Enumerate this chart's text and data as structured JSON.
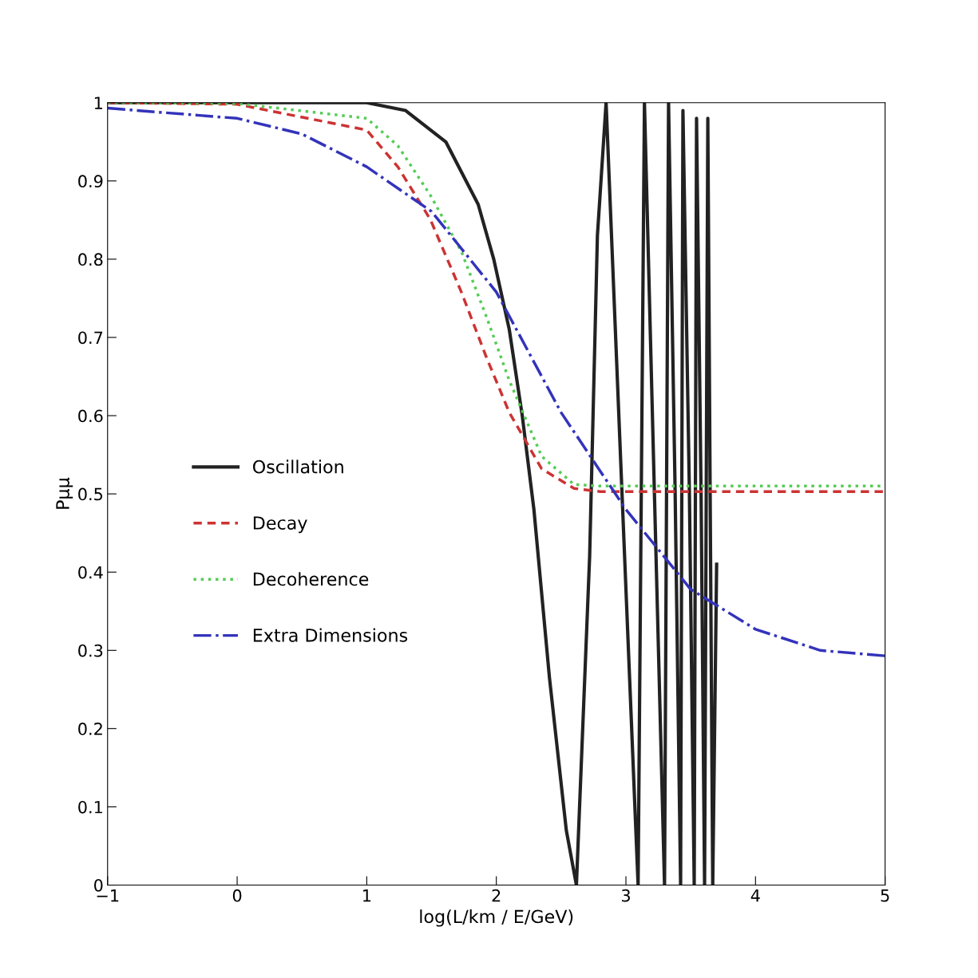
{
  "chart_data": {
    "type": "line",
    "xlabel": "log(L/km / E/GeV)",
    "ylabel": "Pμμ",
    "xlim": [
      -1,
      5
    ],
    "ylim": [
      0,
      1
    ],
    "xticks": [
      {
        "value": -1,
        "label": "−1"
      },
      0,
      1,
      2,
      3,
      4,
      5
    ],
    "yticks": [
      0,
      0.1,
      0.2,
      0.3,
      0.4,
      0.5,
      0.6,
      0.7,
      0.8,
      0.9,
      1
    ],
    "grid": false,
    "legend": "left",
    "marker": "none",
    "series": [
      {
        "name": "Oscillation",
        "color": "#222222",
        "line_style": "solid",
        "x": [
          -1,
          0,
          1,
          1.3,
          1.61,
          1.86,
          1.98,
          2.1,
          2.2,
          2.29,
          2.41,
          2.54,
          2.618,
          2.72,
          2.78,
          2.847,
          2.97,
          3.094,
          3.143,
          3.22,
          3.298,
          3.329,
          3.38,
          3.422,
          3.44,
          3.49,
          3.527,
          3.545,
          3.58,
          3.607,
          3.632,
          3.65,
          3.67,
          3.7
        ],
        "values": [
          1,
          1,
          1,
          0.99,
          0.95,
          0.87,
          0.8,
          0.71,
          0.6,
          0.48,
          0.265,
          0.07,
          0,
          0.42,
          0.83,
          1,
          0.5,
          0,
          1,
          0.5,
          0,
          1,
          0.5,
          0,
          0.99,
          0.5,
          0,
          0.98,
          0.5,
          0,
          0.98,
          0.5,
          0,
          0.41
        ]
      },
      {
        "name": "Decay",
        "color": "#cc3333",
        "line_style": "dashed",
        "x": [
          -1,
          0,
          1,
          1.24,
          1.49,
          1.73,
          1.92,
          2.1,
          2.35,
          2.6,
          2.8,
          5
        ],
        "values": [
          1,
          0.998,
          0.965,
          0.918,
          0.851,
          0.758,
          0.676,
          0.604,
          0.532,
          0.507,
          0.503,
          0.503
        ]
      },
      {
        "name": "Decoherence",
        "color": "#55cc55",
        "line_style": "dotted",
        "x": [
          -1,
          0,
          1,
          1.24,
          1.49,
          1.73,
          1.92,
          2.1,
          2.35,
          2.6,
          2.8,
          5
        ],
        "values": [
          1,
          0.999,
          0.98,
          0.945,
          0.882,
          0.81,
          0.728,
          0.645,
          0.548,
          0.512,
          0.51,
          0.51
        ]
      },
      {
        "name": "Extra Dimensions",
        "color": "#3333bb",
        "line_style": "dashdot",
        "x": [
          -1,
          0,
          0.5,
          1,
          1.5,
          2,
          2.5,
          3,
          3.5,
          4,
          4.5,
          5
        ],
        "values": [
          0.993,
          0.98,
          0.96,
          0.918,
          0.861,
          0.758,
          0.604,
          0.48,
          0.378,
          0.327,
          0.3,
          0.293
        ]
      }
    ]
  }
}
